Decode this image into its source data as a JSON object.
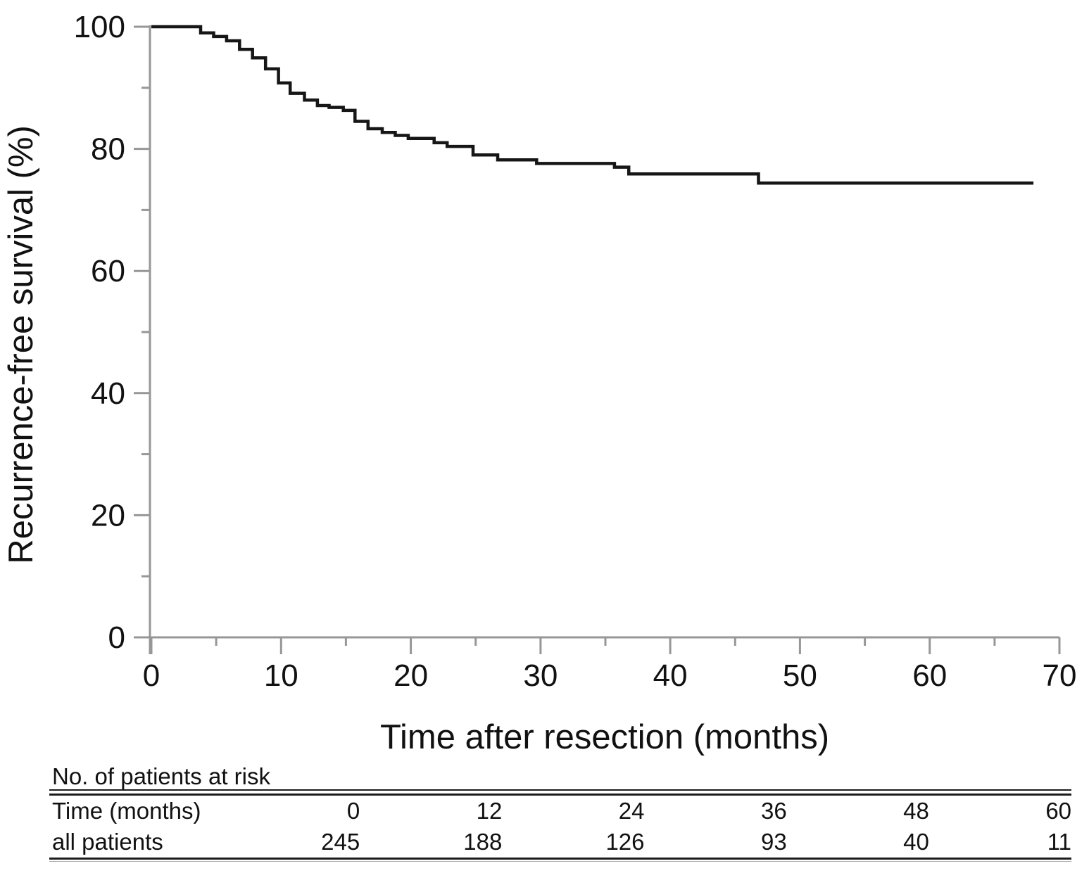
{
  "chart_data": {
    "type": "line",
    "subtype": "kaplan-meier-step-curve",
    "title": "",
    "xlabel": "Time after resection (months)",
    "ylabel": "Recurrence-free survival (%)",
    "xlim": [
      0,
      70
    ],
    "ylim": [
      0,
      100
    ],
    "x_major_ticks": [
      0,
      10,
      20,
      30,
      40,
      50,
      60,
      70
    ],
    "x_minor_ticks": [
      5,
      15,
      25,
      35,
      45,
      55,
      65
    ],
    "y_major_ticks": [
      0,
      20,
      40,
      60,
      80,
      100
    ],
    "y_minor_ticks": [
      10,
      30,
      50,
      70,
      90
    ],
    "grid": "off",
    "legend": "none",
    "colors": {
      "curve": "#161616",
      "axis": "#979797",
      "text": "#111111"
    },
    "series": [
      {
        "name": "all patients",
        "color": "#161616",
        "steps": [
          [
            0,
            100
          ],
          [
            3.8,
            99.0
          ],
          [
            4.8,
            98.4
          ],
          [
            5.8,
            97.7
          ],
          [
            6.8,
            96.3
          ],
          [
            7.8,
            94.9
          ],
          [
            8.8,
            93.1
          ],
          [
            9.8,
            90.8
          ],
          [
            10.7,
            89.1
          ],
          [
            11.8,
            88.0
          ],
          [
            12.8,
            87.1
          ],
          [
            13.7,
            86.8
          ],
          [
            14.8,
            86.3
          ],
          [
            15.7,
            84.5
          ],
          [
            16.7,
            83.3
          ],
          [
            17.8,
            82.7
          ],
          [
            18.8,
            82.2
          ],
          [
            19.8,
            81.7
          ],
          [
            21.8,
            81.0
          ],
          [
            22.8,
            80.4
          ],
          [
            24.8,
            79.0
          ],
          [
            26.7,
            78.2
          ],
          [
            29.7,
            77.6
          ],
          [
            35.7,
            77.0
          ],
          [
            36.8,
            75.9
          ],
          [
            46.8,
            74.4
          ],
          [
            68,
            74.4
          ]
        ]
      }
    ],
    "risk_table": {
      "title": "No. of patients at risk",
      "rows": [
        {
          "label": "Time (months)",
          "values": [
            "0",
            "12",
            "24",
            "36",
            "48",
            "60"
          ]
        },
        {
          "label": "all patients",
          "values": [
            "245",
            "188",
            "126",
            "93",
            "40",
            "11"
          ]
        }
      ]
    }
  }
}
